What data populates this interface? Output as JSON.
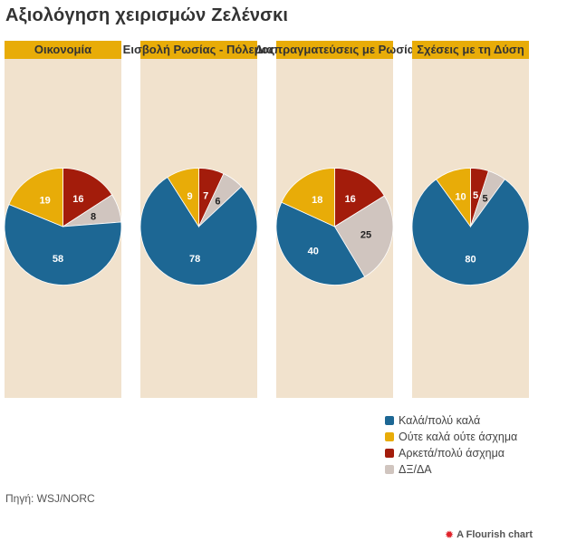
{
  "title": "Αξιολόγηση χειρισμών Ζελένσκι",
  "source": "Πηγή: WSJ/NORC",
  "flourish_label": "A Flourish chart",
  "colors": {
    "good": "#1d6794",
    "neutral": "#e8ac08",
    "bad": "#a31c0b",
    "dk": "#d0c5bf",
    "panel_bg": "#f1e2cd",
    "header_bg": "#e8ac08"
  },
  "chart_data": [
    {
      "type": "pie",
      "title": "Οικονομία",
      "categories": [
        "Καλά/πολύ καλά",
        "Ούτε καλά ούτε άσχημα",
        "Αρκετά/πολύ άσχημα",
        "ΔΞ/ΔΑ"
      ],
      "values": [
        58,
        19,
        16,
        8
      ]
    },
    {
      "type": "pie",
      "title": "Εισβολή Ρωσίας - Πόλεμος",
      "categories": [
        "Καλά/πολύ καλά",
        "Ούτε καλά ούτε άσχημα",
        "Αρκετά/πολύ άσχημα",
        "ΔΞ/ΔΑ"
      ],
      "values": [
        78,
        9,
        7,
        6
      ]
    },
    {
      "type": "pie",
      "title": "Διαπραγματεύσεις με Ρωσία",
      "categories": [
        "Καλά/πολύ καλά",
        "Ούτε καλά ούτε άσχημα",
        "Αρκετά/πολύ άσχημα",
        "ΔΞ/ΔΑ"
      ],
      "values": [
        40,
        18,
        16,
        25
      ]
    },
    {
      "type": "pie",
      "title": "Σχέσεις με τη Δύση",
      "categories": [
        "Καλά/πολύ καλά",
        "Ούτε καλά ούτε άσχημα",
        "Αρκετά/πολύ άσχημα",
        "ΔΞ/ΔΑ"
      ],
      "values": [
        80,
        10,
        5,
        5
      ]
    }
  ],
  "legend": [
    {
      "label": "Καλά/πολύ καλά",
      "color": "#1d6794"
    },
    {
      "label": "Ούτε καλά ούτε άσχημα",
      "color": "#e8ac08"
    },
    {
      "label": "Αρκετά/πολύ άσχημα",
      "color": "#a31c0b"
    },
    {
      "label": "ΔΞ/ΔΑ",
      "color": "#d0c5bf"
    }
  ]
}
